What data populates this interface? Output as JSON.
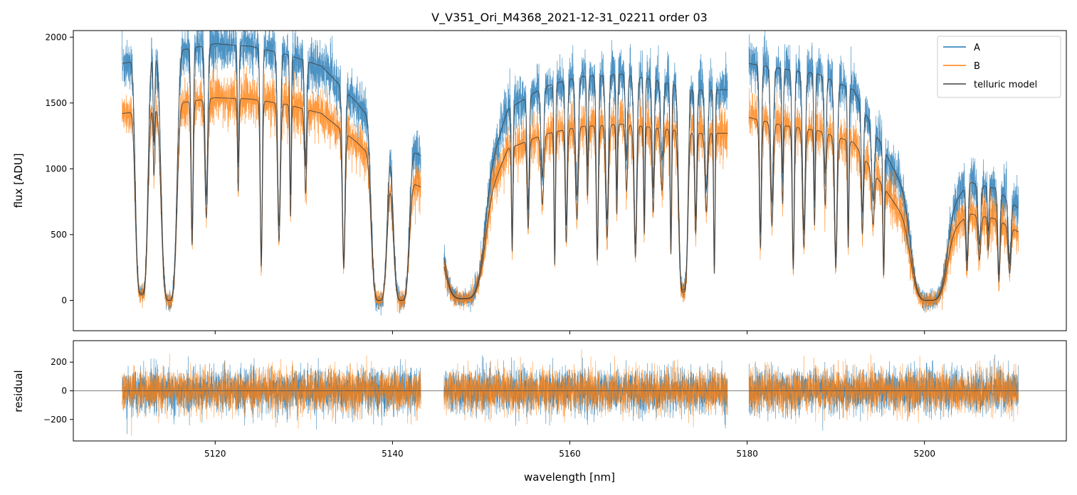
{
  "chart_data": {
    "type": "line",
    "title": "V_V351_Ori_M4368_2021-12-31_02211  order 03",
    "xlabel": "wavelength [nm]",
    "xlim": [
      5104,
      5216
    ],
    "xticks": [
      5120,
      5140,
      5160,
      5180,
      5200
    ],
    "xtick_labels": [
      "5120",
      "5140",
      "5160",
      "5180",
      "5200"
    ],
    "segments": [
      [
        5109.5,
        5143.2
      ],
      [
        5145.8,
        5177.8
      ],
      [
        5180.2,
        5210.6
      ]
    ],
    "top": {
      "ylabel": "flux [ADU]",
      "ylim": [
        -230,
        2050
      ],
      "yticks": [
        0,
        500,
        1000,
        1500,
        2000
      ],
      "ytick_labels": [
        "0",
        "500",
        "1000",
        "1500",
        "2000"
      ],
      "series": [
        {
          "name": "A",
          "color": "#1f77b4",
          "continuum": [
            [
              5109.5,
              1800
            ],
            [
              5112,
              1830
            ],
            [
              5116,
              1900
            ],
            [
              5120,
              1950
            ],
            [
              5124,
              1930
            ],
            [
              5128,
              1870
            ],
            [
              5132,
              1780
            ],
            [
              5136,
              1500
            ],
            [
              5139,
              1250
            ],
            [
              5143.2,
              1100
            ],
            [
              5145.8,
              700
            ],
            [
              5150,
              800
            ],
            [
              5153,
              1450
            ],
            [
              5157,
              1620
            ],
            [
              5161,
              1700
            ],
            [
              5166,
              1720
            ],
            [
              5170,
              1670
            ],
            [
              5174,
              1600
            ],
            [
              5177.8,
              1600
            ],
            [
              5180.2,
              1800
            ],
            [
              5184,
              1760
            ],
            [
              5188,
              1720
            ],
            [
              5192,
              1600
            ],
            [
              5195,
              1200
            ],
            [
              5198,
              800
            ],
            [
              5202,
              600
            ],
            [
              5205,
              900
            ],
            [
              5208,
              850
            ],
            [
              5210.6,
              700
            ]
          ]
        },
        {
          "name": "B",
          "color": "#ff7f0e",
          "continuum": [
            [
              5109.5,
              1420
            ],
            [
              5112,
              1440
            ],
            [
              5116,
              1500
            ],
            [
              5120,
              1540
            ],
            [
              5124,
              1530
            ],
            [
              5128,
              1490
            ],
            [
              5132,
              1420
            ],
            [
              5136,
              1200
            ],
            [
              5139,
              1000
            ],
            [
              5143.2,
              860
            ],
            [
              5145.8,
              560
            ],
            [
              5150,
              650
            ],
            [
              5153,
              1150
            ],
            [
              5157,
              1260
            ],
            [
              5161,
              1320
            ],
            [
              5166,
              1340
            ],
            [
              5170,
              1310
            ],
            [
              5174,
              1270
            ],
            [
              5177.8,
              1270
            ],
            [
              5180.2,
              1390
            ],
            [
              5184,
              1330
            ],
            [
              5188,
              1290
            ],
            [
              5192,
              1200
            ],
            [
              5195,
              900
            ],
            [
              5198,
              600
            ],
            [
              5202,
              450
            ],
            [
              5205,
              660
            ],
            [
              5208,
              620
            ],
            [
              5210.6,
              520
            ]
          ]
        },
        {
          "name": "telluric model",
          "color": "#404040"
        }
      ],
      "absorption_bands": [
        {
          "center": 5111.7,
          "width": 0.8,
          "depth": 0.97
        },
        {
          "center": 5114.8,
          "width": 1.0,
          "depth": 1.0
        },
        {
          "center": 5138.5,
          "width": 1.0,
          "depth": 1.0
        },
        {
          "center": 5141.0,
          "width": 1.0,
          "depth": 1.0
        },
        {
          "center": 5148.0,
          "width": 2.5,
          "depth": 0.98
        },
        {
          "center": 5172.8,
          "width": 0.6,
          "depth": 0.95
        },
        {
          "center": 5200.5,
          "width": 2.2,
          "depth": 1.0
        }
      ],
      "absorption_lines": [
        5113.1,
        5117.4,
        5119.0,
        5122.6,
        5125.2,
        5127.2,
        5128.5,
        5130.2,
        5134.5,
        5153.5,
        5155.3,
        5156.9,
        5158.3,
        5159.6,
        5160.8,
        5162.0,
        5163.1,
        5164.2,
        5165.3,
        5166.4,
        5167.4,
        5168.4,
        5169.4,
        5170.4,
        5171.4,
        5174.2,
        5175.4,
        5176.3,
        5181.5,
        5182.8,
        5184.0,
        5185.2,
        5186.4,
        5187.6,
        5188.8,
        5190.0,
        5191.4,
        5193.0,
        5194.2,
        5195.4,
        5204.8,
        5206.2,
        5207.2,
        5208.4,
        5209.6
      ]
    },
    "bottom": {
      "ylabel": "residual",
      "ylim": [
        -350,
        350
      ],
      "yticks": [
        -200,
        0,
        200
      ],
      "ytick_labels": [
        "−200",
        "0",
        "200"
      ],
      "zero_line": 0
    },
    "legend": {
      "placement": "top-right",
      "entries": [
        "A",
        "B",
        "telluric model"
      ]
    }
  }
}
